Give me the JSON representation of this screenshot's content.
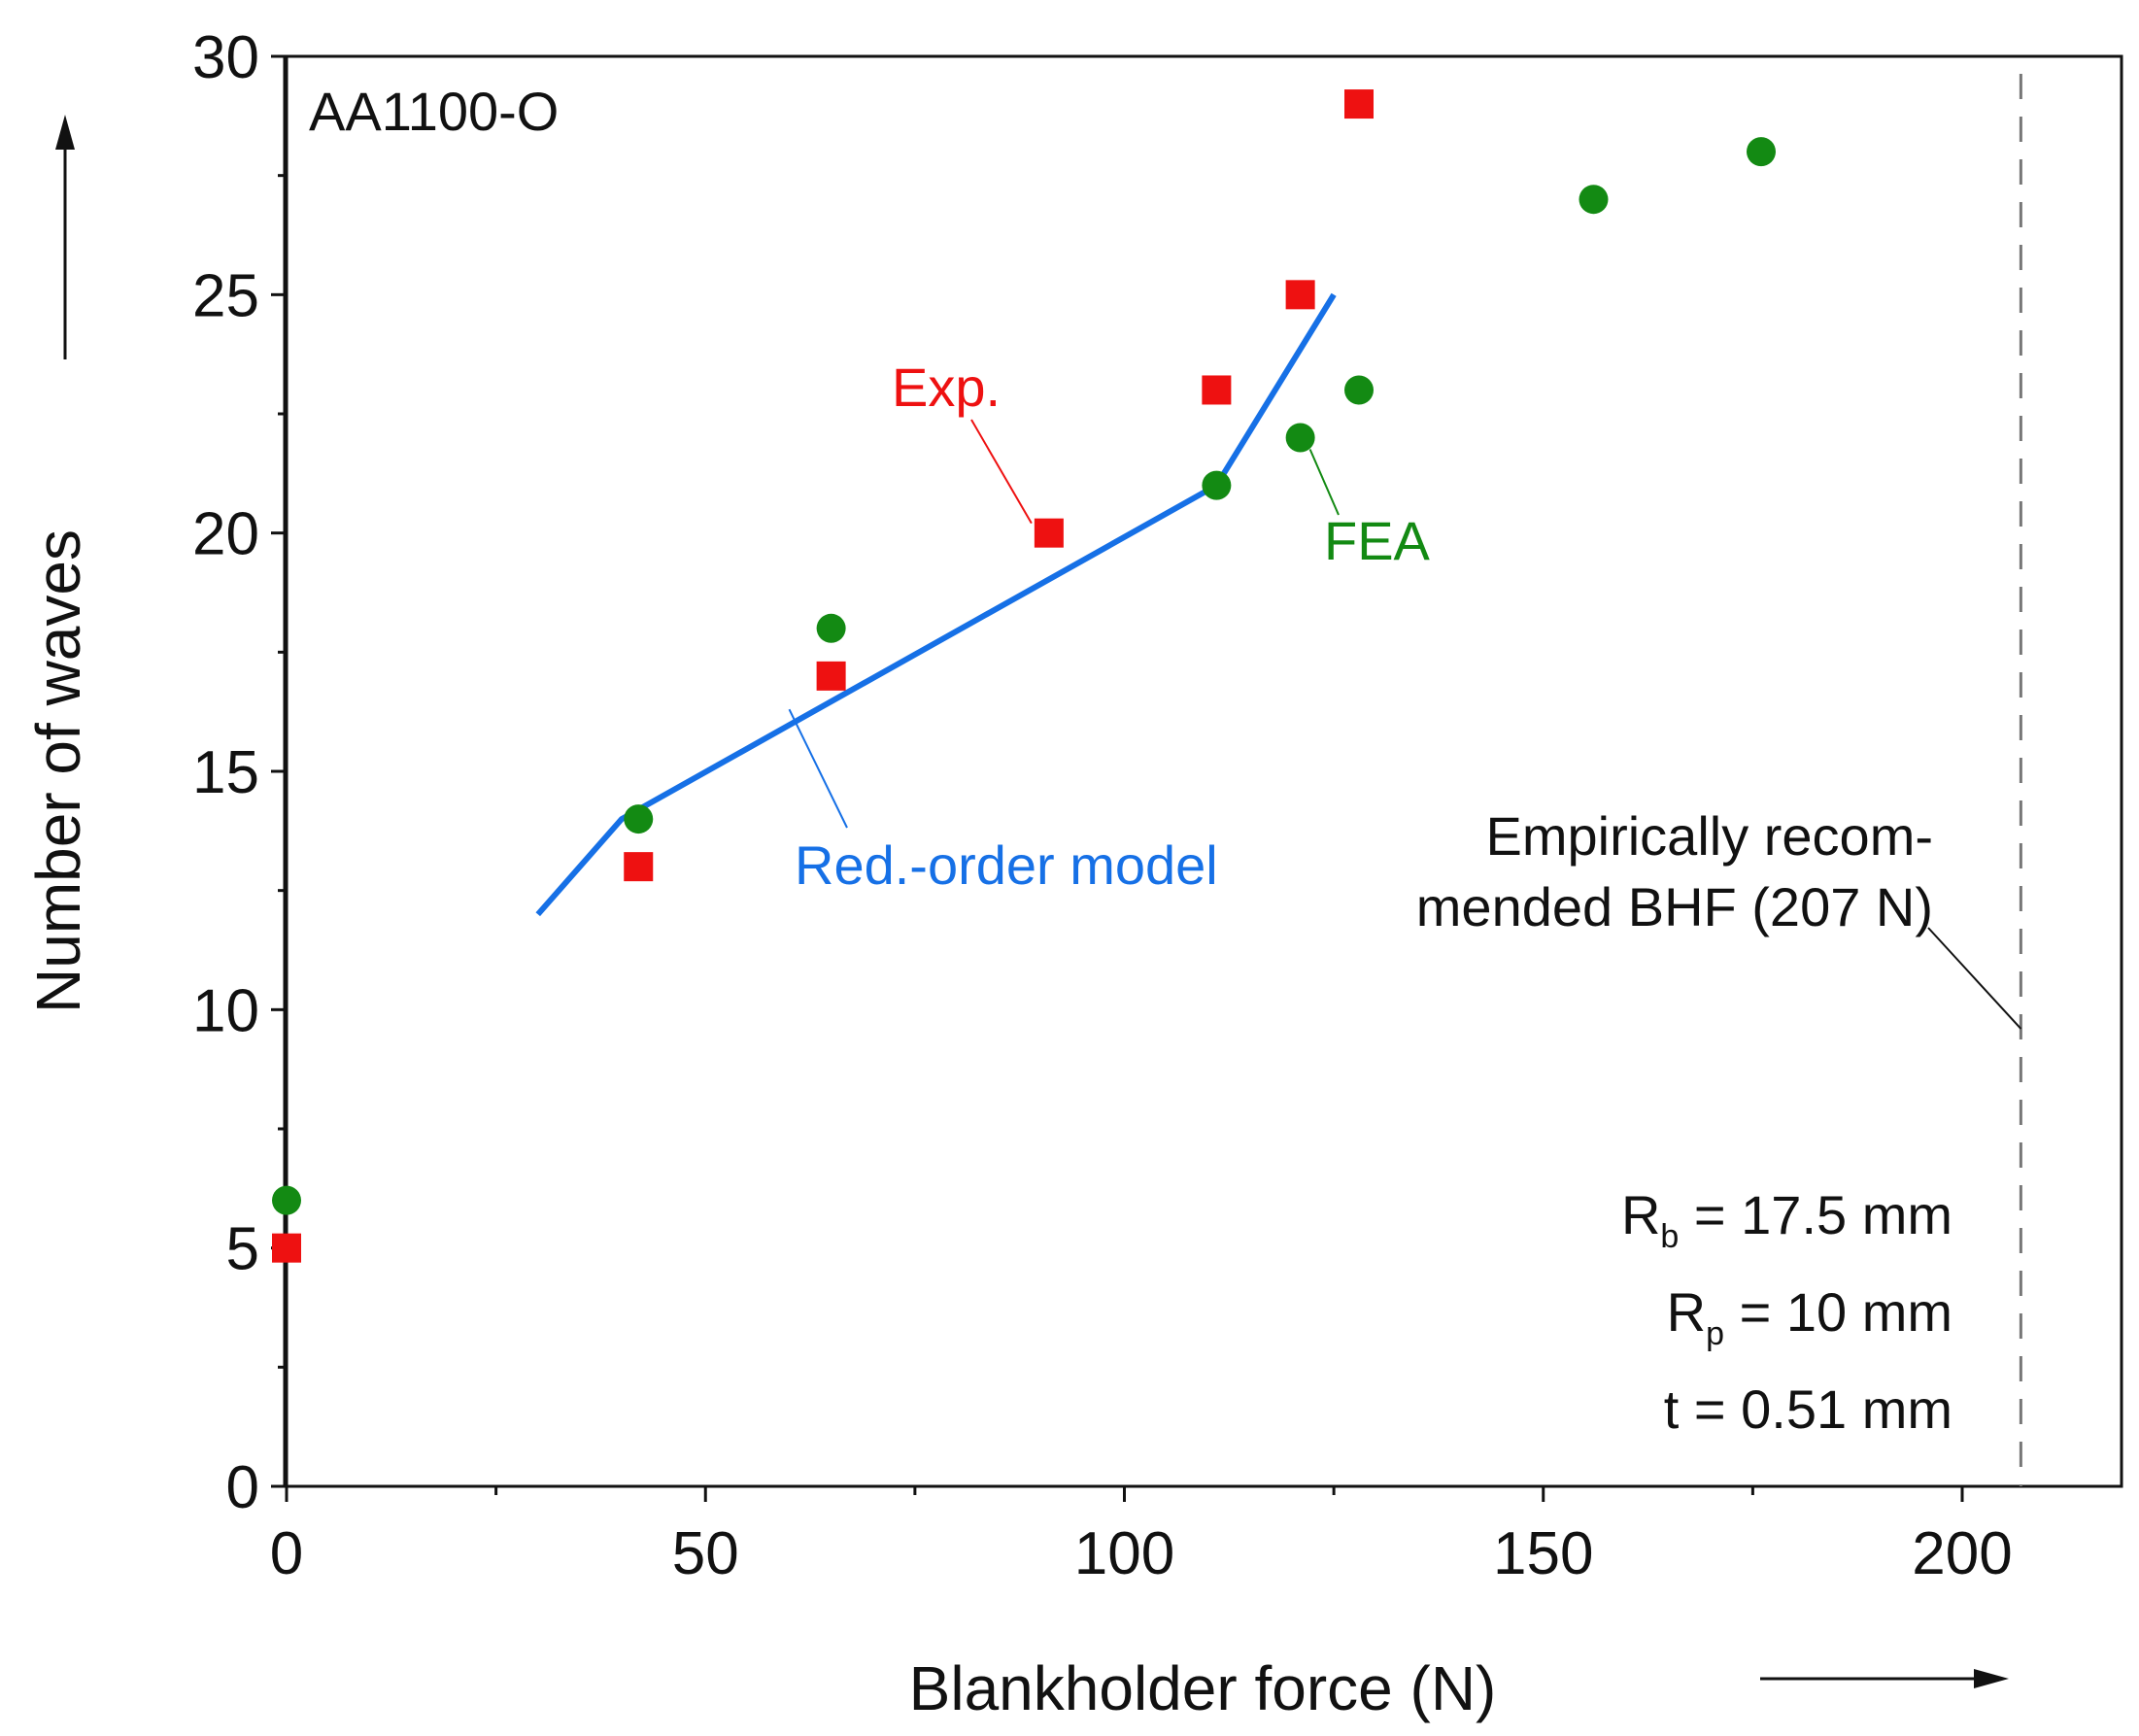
{
  "chart_data": {
    "type": "scatter",
    "title": "",
    "panel_label": "AA1100-O",
    "xlabel": "Blankholder force (N)",
    "ylabel": "Number of waves",
    "xlim": [
      -2,
      220
    ],
    "ylim": [
      0,
      30
    ],
    "xticks": [
      0,
      50,
      100,
      150,
      200
    ],
    "yticks": [
      0,
      5,
      10,
      15,
      20,
      25,
      30
    ],
    "grid": false,
    "colors": {
      "exp": "#ee1111",
      "fea": "#138a13",
      "model": "#1670e6",
      "axis": "#111111",
      "vline": "#777777"
    },
    "series": [
      {
        "name": "Exp.",
        "kind": "square-markers",
        "x": [
          0,
          42,
          65,
          91,
          111,
          121,
          128
        ],
        "y": [
          5,
          13,
          17,
          20,
          23,
          25,
          29
        ]
      },
      {
        "name": "FEA",
        "kind": "circle-markers",
        "x": [
          0,
          42,
          65,
          111,
          121,
          128,
          156,
          176
        ],
        "y": [
          6,
          14,
          18,
          21,
          22,
          23,
          27,
          28
        ]
      },
      {
        "name": "Red.-order model",
        "kind": "line",
        "x": [
          30,
          40,
          111,
          125
        ],
        "y": [
          12,
          14,
          21,
          25
        ]
      }
    ],
    "reference_line": {
      "x": 207,
      "label_line1": "Empirically recom-",
      "label_line2": "mended BHF (207 N)"
    },
    "parameters": [
      {
        "symbol": "R",
        "subscript": "b",
        "text": " = 17.5 mm"
      },
      {
        "symbol": "R",
        "subscript": "p",
        "text": " = 10 mm"
      },
      {
        "symbol": "t",
        "subscript": "",
        "text": " = 0.51 mm"
      }
    ]
  }
}
